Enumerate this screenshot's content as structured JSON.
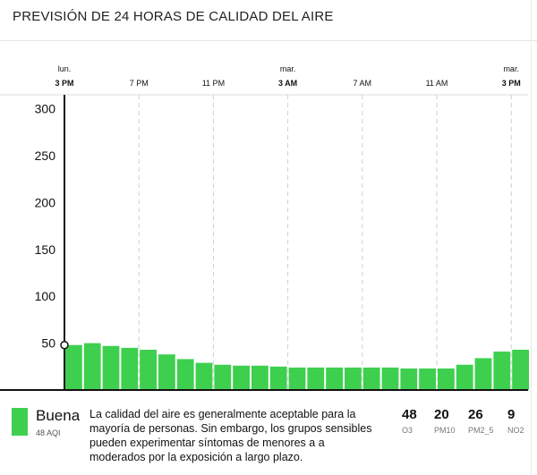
{
  "header": {
    "title": "PREVISIÓN DE 24 HORAS DE CALIDAD DEL AIRE"
  },
  "chart_data": {
    "type": "bar",
    "title": "PREVISIÓN DE 24 HORAS DE CALIDAD DEL AIRE",
    "ylim": [
      0,
      315
    ],
    "y_ticks": [
      50,
      100,
      150,
      200,
      250,
      300
    ],
    "bar_color": "#3ecf4f",
    "current_value": 48,
    "values": [
      48,
      50,
      47,
      45,
      43,
      38,
      33,
      29,
      27,
      26,
      26,
      25,
      24,
      24,
      24,
      24,
      24,
      24,
      23,
      23,
      23,
      27,
      34,
      41,
      43
    ],
    "x_ticks": [
      {
        "hour": 0,
        "day": "lun.",
        "label": "3 PM",
        "bold": true
      },
      {
        "hour": 4,
        "day": "",
        "label": "7 PM",
        "bold": false
      },
      {
        "hour": 8,
        "day": "",
        "label": "11 PM",
        "bold": false
      },
      {
        "hour": 12,
        "day": "mar.",
        "label": "3 AM",
        "bold": true
      },
      {
        "hour": 16,
        "day": "",
        "label": "7 AM",
        "bold": false
      },
      {
        "hour": 20,
        "day": "",
        "label": "11 AM",
        "bold": false
      },
      {
        "hour": 24,
        "day": "mar.",
        "label": "3 PM",
        "bold": true
      }
    ]
  },
  "summary": {
    "level": "Buena",
    "aqi_label": "48 AQI",
    "color": "#3ecf4f",
    "description": "La calidad del aire es generalmente aceptable para la mayoría de personas. Sin embargo, los grupos sensibles pueden experimentar síntomas de menores a a moderados por la exposición a largo plazo."
  },
  "pollutants": [
    {
      "value": "48",
      "name": "O3"
    },
    {
      "value": "20",
      "name": "PM10"
    },
    {
      "value": "26",
      "name": "PM2_5"
    },
    {
      "value": "9",
      "name": "NO2"
    }
  ]
}
